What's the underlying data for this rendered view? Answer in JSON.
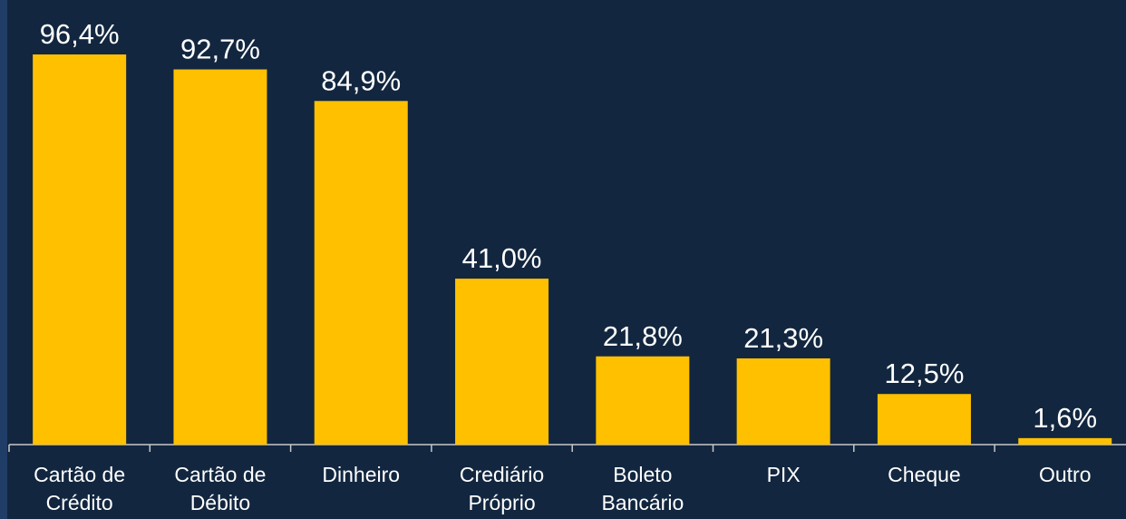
{
  "chart_data": {
    "type": "bar",
    "categories": [
      "Cartão de Crédito",
      "Cartão de Débito",
      "Dinheiro",
      "Crediário Próprio",
      "Boleto Bancário",
      "PIX",
      "Cheque",
      "Outro"
    ],
    "values": [
      96.4,
      92.7,
      84.9,
      41.0,
      21.8,
      21.3,
      12.5,
      1.6
    ],
    "value_labels": [
      "96,4%",
      "92,7%",
      "84,9%",
      "41,0%",
      "21,8%",
      "21,3%",
      "12,5%",
      "1,6%"
    ],
    "color": "#FFC000"
  }
}
